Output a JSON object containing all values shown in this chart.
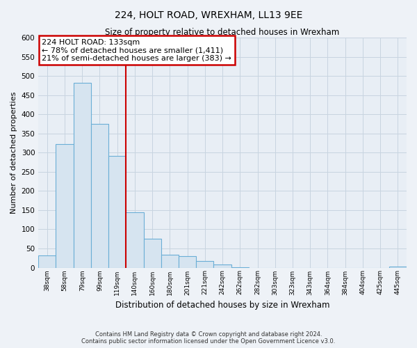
{
  "title": "224, HOLT ROAD, WREXHAM, LL13 9EE",
  "subtitle": "Size of property relative to detached houses in Wrexham",
  "xlabel": "Distribution of detached houses by size in Wrexham",
  "ylabel": "Number of detached properties",
  "bar_labels": [
    "38sqm",
    "58sqm",
    "79sqm",
    "99sqm",
    "119sqm",
    "140sqm",
    "160sqm",
    "180sqm",
    "201sqm",
    "221sqm",
    "242sqm",
    "262sqm",
    "282sqm",
    "303sqm",
    "323sqm",
    "343sqm",
    "364sqm",
    "384sqm",
    "404sqm",
    "425sqm",
    "445sqm"
  ],
  "bar_heights": [
    32,
    322,
    482,
    375,
    292,
    145,
    75,
    33,
    30,
    17,
    8,
    1,
    0,
    0,
    0,
    0,
    0,
    0,
    0,
    0,
    2
  ],
  "bar_color": "#d6e4f0",
  "bar_edge_color": "#6aaed6",
  "vline_color": "#cc0000",
  "vline_x_index": 5,
  "annotation_text_line1": "224 HOLT ROAD: 133sqm",
  "annotation_text_line2": "← 78% of detached houses are smaller (1,411)",
  "annotation_text_line3": "21% of semi-detached houses are larger (383) →",
  "annotation_box_color": "#ffffff",
  "annotation_box_edge_color": "#cc0000",
  "ylim": [
    0,
    600
  ],
  "yticks": [
    0,
    50,
    100,
    150,
    200,
    250,
    300,
    350,
    400,
    450,
    500,
    550,
    600
  ],
  "footer_line1": "Contains HM Land Registry data © Crown copyright and database right 2024.",
  "footer_line2": "Contains public sector information licensed under the Open Government Licence v3.0.",
  "bg_color": "#eef2f7",
  "plot_bg_color": "#e8eef5",
  "grid_color": "#c8d4e0"
}
